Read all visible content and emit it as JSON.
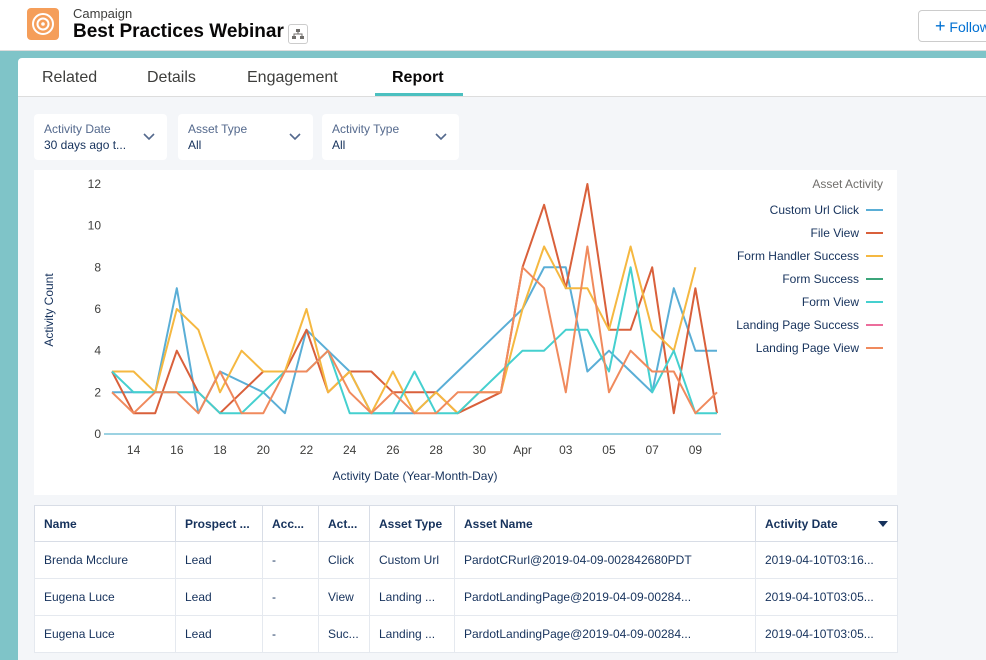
{
  "header": {
    "object_type": "Campaign",
    "title": "Best Practices Webinar",
    "follow_button": "Follow"
  },
  "tabs": [
    "Related",
    "Details",
    "Engagement",
    "Report"
  ],
  "selected_tab": "Report",
  "filters": [
    {
      "label": "Activity Date",
      "value": "30 days ago t..."
    },
    {
      "label": "Asset Type",
      "value": "All"
    },
    {
      "label": "Activity Type",
      "value": "All"
    }
  ],
  "chart_data": {
    "type": "line",
    "x_label": "Activity Date (Year-Month-Day)",
    "y_label": "Activity Count",
    "legend_title": "Asset Activity",
    "legend_position": "right",
    "categories": [
      null,
      "14",
      null,
      "16",
      null,
      "18",
      null,
      "20",
      null,
      "22",
      null,
      "24",
      null,
      "26",
      null,
      "28",
      null,
      "30",
      null,
      "Apr",
      null,
      "03",
      null,
      "05",
      null,
      "07",
      null,
      "09",
      null
    ],
    "ylim": [
      0,
      12
    ],
    "yticks": [
      0,
      2,
      4,
      6,
      8,
      10,
      12
    ],
    "series": [
      {
        "name": "Custom Url Click",
        "color": "#5aaed6",
        "values": [
          2,
          2,
          2,
          7,
          1,
          3,
          2.5,
          2,
          1,
          5,
          4,
          3,
          1,
          1,
          1,
          2,
          3,
          4,
          5,
          6,
          8,
          8,
          3,
          4,
          3,
          2,
          7,
          4,
          4
        ]
      },
      {
        "name": "File View",
        "color": "#d9603b",
        "values": [
          3,
          1,
          1,
          4,
          2,
          1,
          2,
          3,
          3,
          5,
          2,
          3,
          3,
          2,
          2,
          2,
          1,
          1.5,
          2,
          8,
          11,
          7,
          12,
          5,
          5,
          8,
          1,
          7,
          1
        ]
      },
      {
        "name": "Form Handler Success",
        "color": "#f5b841",
        "values": [
          3,
          3,
          2,
          6,
          5,
          2,
          4,
          3,
          3,
          6,
          2,
          3,
          1,
          3,
          1,
          2,
          1,
          2,
          2,
          6,
          9,
          7,
          7,
          5,
          9,
          5,
          4,
          8,
          null
        ]
      },
      {
        "name": "Form Success",
        "color": "#3ba57a",
        "values": [
          null,
          null,
          null,
          null,
          null,
          null,
          null,
          null,
          null,
          null,
          null,
          null,
          null,
          null,
          null,
          null,
          null,
          null,
          null,
          null,
          null,
          null,
          null,
          null,
          null,
          null,
          null,
          null,
          null
        ]
      },
      {
        "name": "Form View",
        "color": "#45d0cf",
        "values": [
          3,
          2,
          2,
          2,
          2,
          1,
          1,
          2,
          3,
          3,
          4,
          1,
          1,
          1,
          3,
          1,
          1,
          2,
          3,
          4,
          4,
          5,
          5,
          3,
          8,
          2,
          4,
          1,
          1
        ]
      },
      {
        "name": "Landing Page Success",
        "color": "#ec6d9c",
        "values": [
          null,
          null,
          null,
          null,
          null,
          null,
          null,
          null,
          null,
          null,
          null,
          null,
          null,
          null,
          null,
          null,
          null,
          null,
          null,
          null,
          null,
          null,
          null,
          null,
          null,
          null,
          null,
          null,
          null
        ]
      },
      {
        "name": "Landing Page View",
        "color": "#f08a5d",
        "values": [
          2,
          1,
          2,
          2,
          1,
          3,
          1,
          1,
          3,
          3,
          4,
          2,
          1,
          2,
          1,
          1,
          2,
          2,
          2,
          8,
          7,
          2,
          9,
          2,
          4,
          3,
          3,
          1,
          2
        ]
      }
    ]
  },
  "table": {
    "columns": [
      "Name",
      "Prospect ...",
      "Acc...",
      "Act...",
      "Asset Type",
      "Asset Name",
      "Activity Date"
    ],
    "rows": [
      [
        "Brenda Mcclure",
        "Lead",
        "-",
        "Click",
        "Custom Url",
        "PardotCRurl@2019-04-09-002842680PDT",
        "2019-04-10T03:16..."
      ],
      [
        "Eugena Luce",
        "Lead",
        "-",
        "View",
        "Landing ...",
        "PardotLandingPage@2019-04-09-00284...",
        "2019-04-10T03:05..."
      ],
      [
        "Eugena Luce",
        "Lead",
        "-",
        "Suc...",
        "Landing ...",
        "PardotLandingPage@2019-04-09-00284...",
        "2019-04-10T03:05..."
      ]
    ]
  }
}
